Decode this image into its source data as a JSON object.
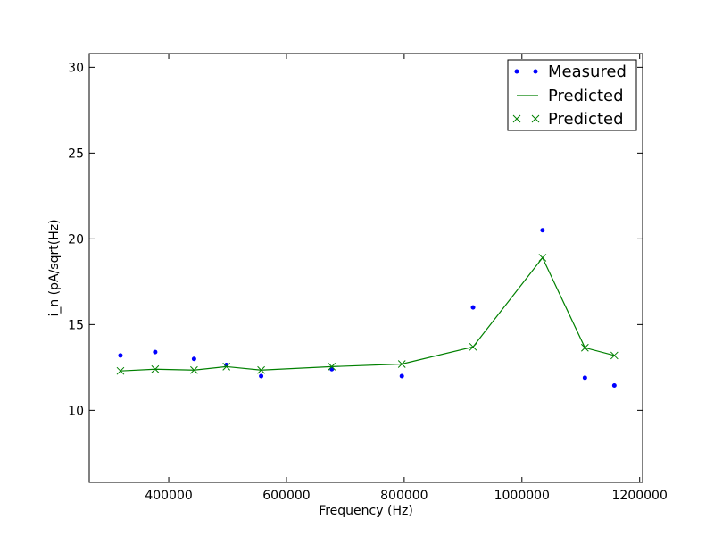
{
  "chart_data": {
    "type": "line",
    "xlabel": "Frequency (Hz)",
    "ylabel": "i_n (pA/sqrt(Hz)",
    "xlim": [
      265000,
      1205000
    ],
    "ylim": [
      5.8,
      30.8
    ],
    "x_ticks": [
      400000,
      600000,
      800000,
      1000000,
      1200000
    ],
    "x_tick_labels": [
      "400000",
      "600000",
      "800000",
      "1000000",
      "1200000"
    ],
    "y_ticks": [
      10,
      15,
      20,
      25,
      30
    ],
    "y_tick_labels": [
      "10",
      "15",
      "20",
      "25",
      "30"
    ],
    "grid": false,
    "legend_position": "top-right",
    "colors": {
      "measured": "#0000ff",
      "predicted": "#008000"
    },
    "series": [
      {
        "name": "Measured",
        "style": "points",
        "color": "#0000ff",
        "x": [
          318000,
          377000,
          443000,
          498000,
          557000,
          677000,
          796000,
          917000,
          1035000,
          1107000,
          1157000
        ],
        "y": [
          13.2,
          13.4,
          13.0,
          12.65,
          12.0,
          12.4,
          12.0,
          16.0,
          20.5,
          11.9,
          11.45
        ]
      },
      {
        "name": "Predicted",
        "style": "line",
        "color": "#008000",
        "x": [
          318000,
          377000,
          443000,
          498000,
          557000,
          677000,
          796000,
          917000,
          1035000,
          1107000,
          1157000
        ],
        "y": [
          12.3,
          12.4,
          12.35,
          12.55,
          12.35,
          12.55,
          12.7,
          13.7,
          18.9,
          13.65,
          13.2
        ]
      },
      {
        "name": "Predicted",
        "style": "markers-x",
        "color": "#008000",
        "x": [
          318000,
          377000,
          443000,
          498000,
          557000,
          677000,
          796000,
          917000,
          1035000,
          1107000,
          1157000
        ],
        "y": [
          12.3,
          12.4,
          12.35,
          12.55,
          12.35,
          12.55,
          12.7,
          13.7,
          18.9,
          13.65,
          13.2
        ]
      }
    ]
  }
}
